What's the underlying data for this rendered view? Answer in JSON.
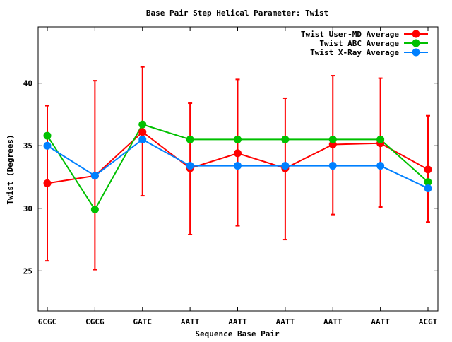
{
  "chart_data": {
    "type": "line",
    "title": "Base Pair Step Helical Parameter: Twist",
    "xlabel": "Sequence Base Pair",
    "ylabel": "Twist (Degrees)",
    "categories": [
      "GCGC",
      "CGCG",
      "GATC",
      "AATT",
      "AATT",
      "AATT",
      "AATT",
      "AATT",
      "ACGT"
    ],
    "ylim": [
      21.8,
      44.5
    ],
    "yticks": [
      25,
      30,
      35,
      40
    ],
    "grid": false,
    "legend_position": "top-right",
    "series": [
      {
        "name": "Twist User-MD Average",
        "color": "#ff0000",
        "values": [
          32.0,
          32.6,
          36.1,
          33.2,
          34.4,
          33.2,
          35.1,
          35.2,
          33.1
        ],
        "err_high": [
          38.2,
          40.2,
          41.3,
          38.4,
          40.3,
          38.8,
          40.6,
          40.4,
          37.4
        ],
        "err_low": [
          25.8,
          25.1,
          31.0,
          27.9,
          28.6,
          27.5,
          29.5,
          30.1,
          28.9
        ]
      },
      {
        "name": "Twist ABC Average",
        "color": "#00c000",
        "values": [
          35.8,
          29.9,
          36.7,
          35.5,
          35.5,
          35.5,
          35.5,
          35.5,
          32.1
        ]
      },
      {
        "name": "Twist X-Ray Average",
        "color": "#0080ff",
        "values": [
          35.0,
          32.6,
          35.5,
          33.4,
          33.4,
          33.4,
          33.4,
          33.4,
          31.6
        ]
      }
    ]
  }
}
